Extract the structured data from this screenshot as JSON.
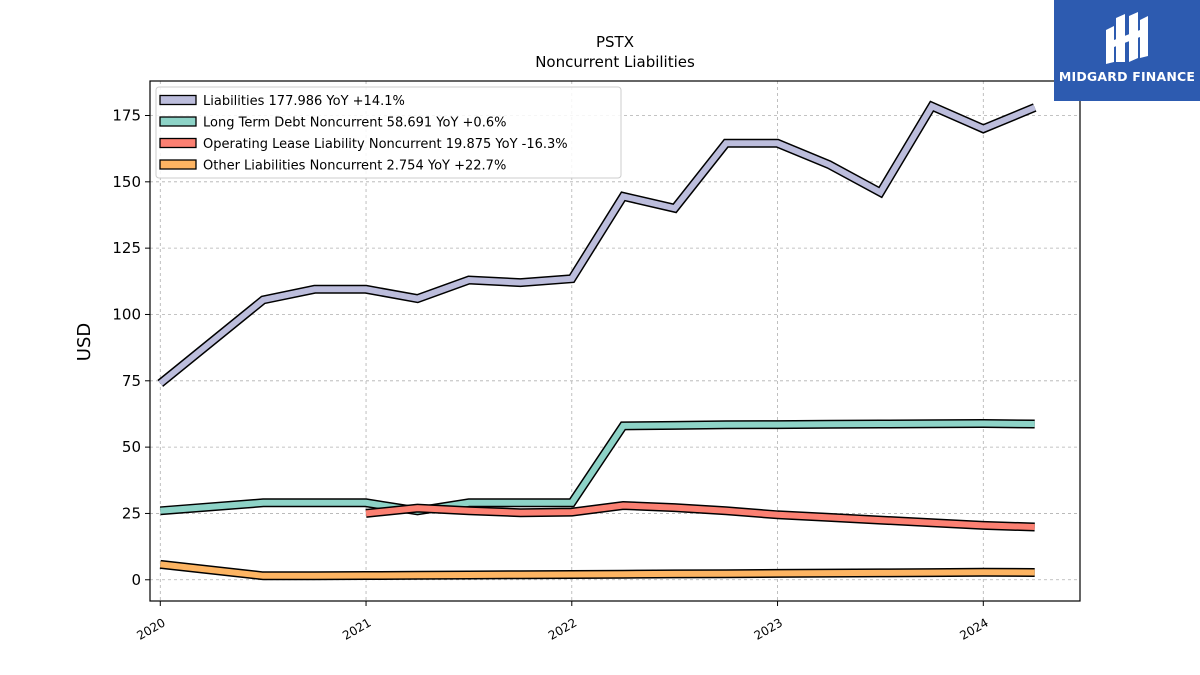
{
  "brand": {
    "name": "MIDGARD FINANCE",
    "bg_color": "#2d5bb0"
  },
  "chart_data": {
    "type": "line",
    "title": "PSTX",
    "subtitle": "Noncurrent  Liabilities",
    "ylabel": "USD",
    "xlabel": "",
    "xlim": [
      2019.95,
      2024.47
    ],
    "ylim": [
      -8,
      188
    ],
    "x_ticks": [
      {
        "value": 2020,
        "label": "2020"
      },
      {
        "value": 2021,
        "label": "2021"
      },
      {
        "value": 2022,
        "label": "2022"
      },
      {
        "value": 2023,
        "label": "2023"
      },
      {
        "value": 2024,
        "label": "2024"
      }
    ],
    "y_ticks": [
      {
        "value": 0,
        "label": "0"
      },
      {
        "value": 25,
        "label": "25"
      },
      {
        "value": 50,
        "label": "50"
      },
      {
        "value": 75,
        "label": "75"
      },
      {
        "value": 100,
        "label": "100"
      },
      {
        "value": 125,
        "label": "125"
      },
      {
        "value": 150,
        "label": "150"
      },
      {
        "value": 175,
        "label": "175"
      }
    ],
    "grid": true,
    "legend_position": "top-left",
    "series": [
      {
        "name": "Liabilities",
        "legend": "Liabilities  177.986 YoY +14.1%",
        "color": "#bcbddc",
        "x": [
          2020.0,
          2020.5,
          2020.75,
          2021.0,
          2021.25,
          2021.5,
          2021.75,
          2022.0,
          2022.25,
          2022.5,
          2022.75,
          2023.0,
          2023.25,
          2023.5,
          2023.75,
          2024.0,
          2024.25
        ],
        "y": [
          74,
          105.5,
          109.5,
          109.5,
          106,
          113,
          112,
          113.5,
          144.5,
          140,
          164.5,
          164.5,
          156.5,
          146,
          178.5,
          170,
          178
        ]
      },
      {
        "name": "Long Term Debt Noncurrent",
        "legend": "Long Term Debt Noncurrent  58.691 YoY +0.6%",
        "color": "#8dd3c7",
        "x": [
          2020.0,
          2020.5,
          2020.75,
          2021.0,
          2021.25,
          2021.5,
          2021.75,
          2022.0,
          2022.25,
          2022.5,
          2022.75,
          2023.0,
          2023.25,
          2023.5,
          2023.75,
          2024.0,
          2024.25
        ],
        "y": [
          26,
          29,
          29,
          29,
          26,
          29,
          29,
          29,
          58,
          58.2,
          58.4,
          58.5,
          58.6,
          58.7,
          58.8,
          58.9,
          58.7
        ]
      },
      {
        "name": "Operating Lease Liability Noncurrent",
        "legend": "Operating Lease Liability Noncurrent  19.875 YoY -16.3%",
        "color": "#fb8072",
        "x": [
          2021.0,
          2021.25,
          2021.5,
          2021.75,
          2022.0,
          2022.25,
          2022.5,
          2022.75,
          2023.0,
          2023.25,
          2023.5,
          2023.75,
          2024.0,
          2024.25
        ],
        "y": [
          25,
          27,
          26,
          25.3,
          25.5,
          28,
          27.2,
          26,
          24.5,
          23.5,
          22.5,
          21.5,
          20.5,
          19.9
        ]
      },
      {
        "name": "Other Liabilities Noncurrent",
        "legend": "Other Liabilities Noncurrent  2.754 YoY +22.7%",
        "color": "#fdb462",
        "x": [
          2020.0,
          2020.5,
          2020.75,
          2021.0,
          2021.25,
          2021.5,
          2021.75,
          2022.0,
          2022.25,
          2022.5,
          2022.75,
          2023.0,
          2023.25,
          2023.5,
          2023.75,
          2024.0,
          2024.25
        ],
        "y": [
          5.8,
          1.5,
          1.5,
          1.6,
          1.7,
          1.8,
          1.9,
          2.0,
          2.1,
          2.2,
          2.3,
          2.4,
          2.5,
          2.6,
          2.7,
          2.8,
          2.75
        ]
      }
    ]
  }
}
